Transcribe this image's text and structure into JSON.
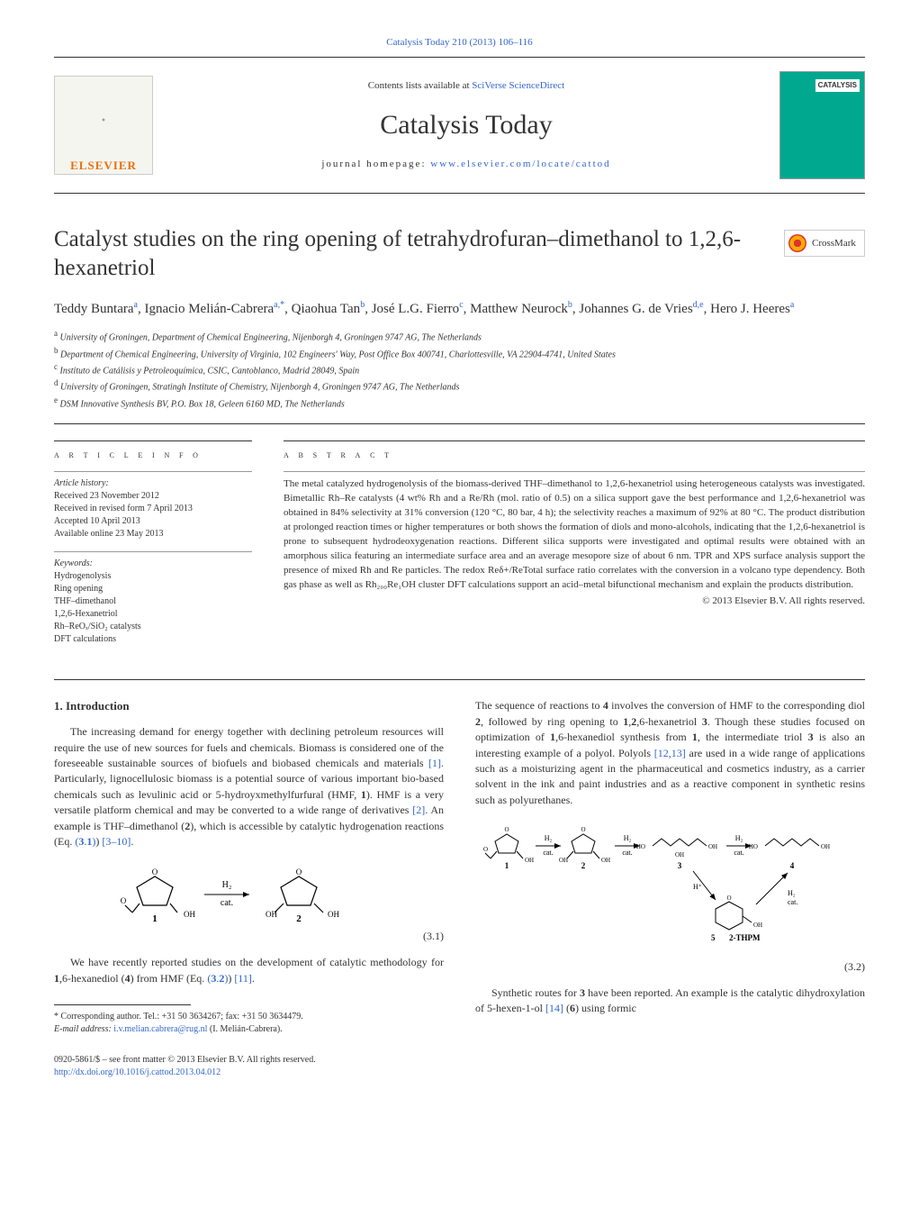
{
  "journal_ref_text": "Catalysis Today 210 (2013) 106–116",
  "header": {
    "contents_prefix": "Contents lists available at ",
    "contents_link": "SciVerse ScienceDirect",
    "journal_name": "Catalysis Today",
    "homepage_prefix": "journal homepage: ",
    "homepage_link": "www.elsevier.com/locate/cattod",
    "elsevier_label": "ELSEVIER",
    "cover_label": "CATALYSIS"
  },
  "title": "Catalyst studies on the ring opening of tetrahydrofuran–dimethanol to 1,2,6-hexanetriol",
  "crossmark_label": "CrossMark",
  "authors_html": "Teddy Buntara<sup>a</sup>, Ignacio Melián-Cabrera<sup>a,*</sup>, Qiaohua Tan<sup>b</sup>, José L.G. Fierro<sup>c</sup>, Matthew Neurock<sup>b</sup>, Johannes G. de Vries<sup>d,e</sup>, Hero J. Heeres<sup>a</sup>",
  "affiliations": [
    {
      "sup": "a",
      "text": "University of Groningen, Department of Chemical Engineering, Nijenborgh 4, Groningen 9747 AG, The Netherlands"
    },
    {
      "sup": "b",
      "text": "Department of Chemical Engineering, University of Virginia, 102 Engineers' Way, Post Office Box 400741, Charlottesville, VA 22904-4741, United States"
    },
    {
      "sup": "c",
      "text": "Instituto de Catálisis y Petroleoquímica, CSIC, Cantoblanco, Madrid 28049, Spain"
    },
    {
      "sup": "d",
      "text": "University of Groningen, Stratingh Institute of Chemistry, Nijenborgh 4, Groningen 9747 AG, The Netherlands"
    },
    {
      "sup": "e",
      "text": "DSM Innovative Synthesis BV, P.O. Box 18, Geleen 6160 MD, The Netherlands"
    }
  ],
  "article_info": {
    "heading": "a r t i c l e   i n f o",
    "history_label": "Article history:",
    "history": [
      "Received 23 November 2012",
      "Received in revised form 7 April 2013",
      "Accepted 10 April 2013",
      "Available online 23 May 2013"
    ],
    "keywords_label": "Keywords:",
    "keywords": [
      "Hydrogenolysis",
      "Ring opening",
      "THF–dimethanol",
      "1,2,6-Hexanetriol",
      "Rh–ReOₓ/SiO₂ catalysts",
      "DFT calculations"
    ]
  },
  "abstract": {
    "heading": "a b s t r a c t",
    "text": "The metal catalyzed hydrogenolysis of the biomass-derived THF–dimethanol to 1,2,6-hexanetriol using heterogeneous catalysts was investigated. Bimetallic Rh–Re catalysts (4 wt% Rh and a Re/Rh (mol. ratio of 0.5) on a silica support gave the best performance and 1,2,6-hexanetriol was obtained in 84% selectivity at 31% conversion (120 °C, 80 bar, 4 h); the selectivity reaches a maximum of 92% at 80 °C. The product distribution at prolonged reaction times or higher temperatures or both shows the formation of diols and mono-alcohols, indicating that the 1,2,6-hexanetriol is prone to subsequent hydrodeoxygenation reactions. Different silica supports were investigated and optimal results were obtained with an amorphous silica featuring an intermediate surface area and an average mesopore size of about 6 nm. TPR and XPS surface analysis support the presence of mixed Rh and Re particles. The redox Reδ+/ReTotal surface ratio correlates with the conversion in a volcano type dependency. Both gas phase as well as Rh₂₀₀Re₁OH cluster DFT calculations support an acid–metal bifunctional mechanism and explain the products distribution.",
    "copyright": "© 2013 Elsevier B.V. All rights reserved."
  },
  "body": {
    "section_title": "1.  Introduction",
    "col1_p1": "The increasing demand for energy together with declining petroleum resources will require the use of new sources for fuels and chemicals. Biomass is considered one of the foreseeable sustainable sources of biofuels and biobased chemicals and materials [1]. Particularly, lignocellulosic biomass is a potential source of various important bio-based chemicals such as levulinic acid or 5-hydroyxmethylfurfural (HMF, 1). HMF is a very versatile platform chemical and may be converted to a wide range of derivatives [2]. An example is THF–dimethanol (2), which is accessible by catalytic hydrogenation reactions (Eq. (3.1)) [3–10].",
    "eq31": "(3.1)",
    "col1_p2": "We have recently reported studies on the development of catalytic methodology for 1,6-hexanediol (4) from HMF (Eq. (3.2)) [11].",
    "col2_p1": "The sequence of reactions to 4 involves the conversion of HMF to the corresponding diol 2, followed by ring opening to 1,2,6-hexanetriol 3. Though these studies focused on optimization of 1,6-hexanediol synthesis from 1, the intermediate triol 3 is also an interesting example of a polyol. Polyols [12,13] are used in a wide range of applications such as a moisturizing agent in the pharmaceutical and cosmetics industry, as a carrier solvent in the ink and paint industries and as a reactive component in synthetic resins such as polyurethanes.",
    "eq32": "(3.2)",
    "col2_p2": "Synthetic routes for 3 have been reported. An example is the catalytic dihydroxylation of 5-hexen-1-ol [14] (6) using formic"
  },
  "footnotes": {
    "corr_prefix": "* Corresponding author. Tel.: +31 50 3634267; fax: +31 50 3634479.",
    "email_label": "E-mail address: ",
    "email": "i.v.melian.cabrera@rug.nl",
    "email_suffix": " (I. Melián-Cabrera)."
  },
  "footer": {
    "line1": "0920-5861/$ – see front matter © 2013 Elsevier B.V. All rights reserved.",
    "doi": "http://dx.doi.org/10.1016/j.cattod.2013.04.012"
  },
  "scheme31": {
    "labels": {
      "h2": "H₂",
      "cat": "cat.",
      "oh": "OH",
      "one": "1",
      "two": "2",
      "o": "O"
    }
  },
  "scheme32": {
    "labels": {
      "h2": "H₂",
      "cat": "cat.",
      "oh": "OH",
      "ho": "HO",
      "hplus": "H⁺",
      "one": "1",
      "two": "2",
      "three": "3",
      "four": "4",
      "five": "5",
      "thpm": "2-THPM",
      "o": "O"
    }
  },
  "colors": {
    "link": "#3366cc",
    "rule": "#333333",
    "light_rule": "#999999",
    "elsevier_orange": "#e8700a",
    "cover_bg": "#00a88f"
  }
}
